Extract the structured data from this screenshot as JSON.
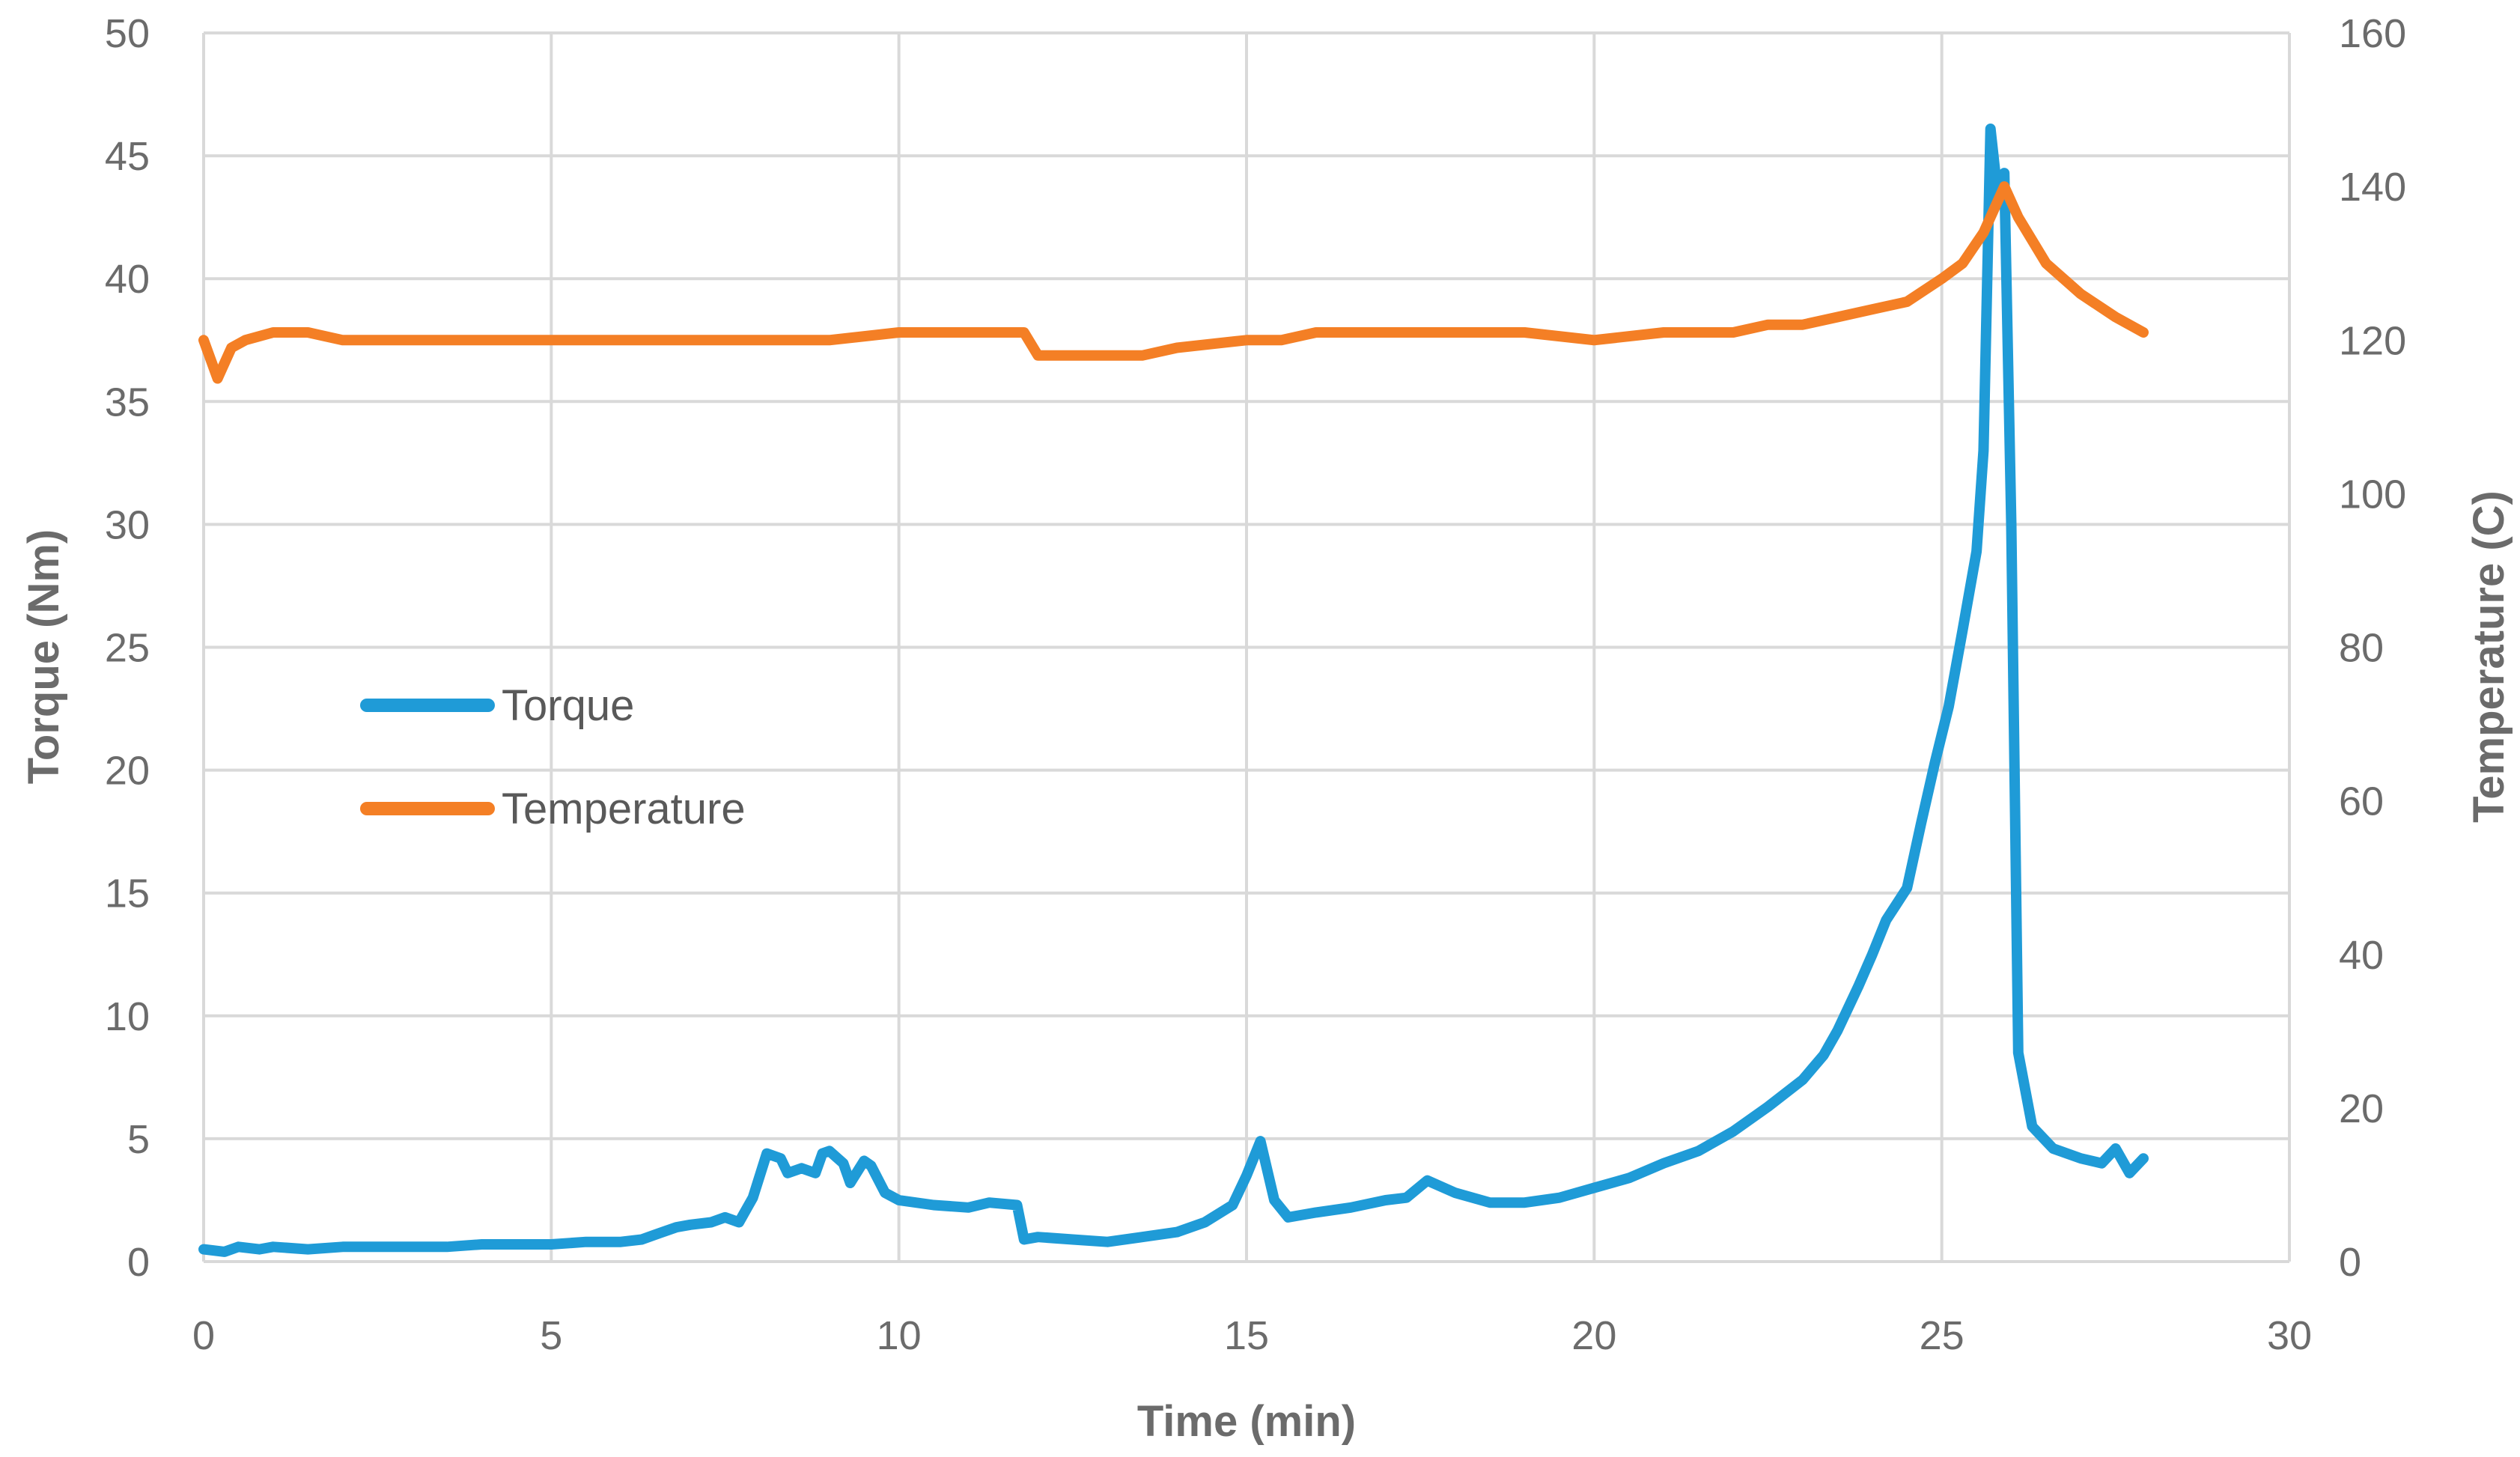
{
  "chart_data": {
    "type": "line",
    "xlabel": "Time (min)",
    "ylabel": "Torque (Nm)",
    "y2label": "Temperature (C)",
    "xlim": [
      0,
      30
    ],
    "ylim": [
      0,
      50
    ],
    "y2lim": [
      0,
      160
    ],
    "xticks": [
      0,
      5,
      10,
      15,
      20,
      25,
      30
    ],
    "yticks": [
      0,
      5,
      10,
      15,
      20,
      25,
      30,
      35,
      40,
      45,
      50
    ],
    "y2ticks": [
      0,
      20,
      40,
      60,
      80,
      100,
      120,
      140,
      160
    ],
    "grid": true,
    "legend_position": "center-left",
    "series": [
      {
        "name": "Torque",
        "axis": "left",
        "color": "#1f9bd7",
        "points": [
          [
            0,
            0.5
          ],
          [
            0.3,
            0.4
          ],
          [
            0.5,
            0.6
          ],
          [
            0.8,
            0.5
          ],
          [
            1,
            0.6
          ],
          [
            1.5,
            0.5
          ],
          [
            2,
            0.6
          ],
          [
            2.5,
            0.6
          ],
          [
            3,
            0.6
          ],
          [
            3.5,
            0.6
          ],
          [
            4,
            0.7
          ],
          [
            4.5,
            0.7
          ],
          [
            5,
            0.7
          ],
          [
            5.5,
            0.8
          ],
          [
            6,
            0.8
          ],
          [
            6.3,
            0.9
          ],
          [
            6.5,
            1.1
          ],
          [
            6.8,
            1.4
          ],
          [
            7,
            1.5
          ],
          [
            7.3,
            1.6
          ],
          [
            7.5,
            1.8
          ],
          [
            7.7,
            1.6
          ],
          [
            7.9,
            2.6
          ],
          [
            8.1,
            4.4
          ],
          [
            8.3,
            4.2
          ],
          [
            8.4,
            3.6
          ],
          [
            8.6,
            3.8
          ],
          [
            8.8,
            3.6
          ],
          [
            8.9,
            4.4
          ],
          [
            9.0,
            4.5
          ],
          [
            9.2,
            4.0
          ],
          [
            9.3,
            3.2
          ],
          [
            9.5,
            4.1
          ],
          [
            9.6,
            3.9
          ],
          [
            9.8,
            2.8
          ],
          [
            10,
            2.5
          ],
          [
            10.5,
            2.3
          ],
          [
            11,
            2.2
          ],
          [
            11.3,
            2.4
          ],
          [
            11.7,
            2.3
          ],
          [
            11.8,
            0.9
          ],
          [
            12,
            1.0
          ],
          [
            12.5,
            0.9
          ],
          [
            13,
            0.8
          ],
          [
            13.5,
            1.0
          ],
          [
            14,
            1.2
          ],
          [
            14.4,
            1.6
          ],
          [
            14.8,
            2.3
          ],
          [
            15.0,
            3.5
          ],
          [
            15.2,
            4.9
          ],
          [
            15.4,
            2.5
          ],
          [
            15.6,
            1.8
          ],
          [
            16,
            2.0
          ],
          [
            16.5,
            2.2
          ],
          [
            17,
            2.5
          ],
          [
            17.3,
            2.6
          ],
          [
            17.6,
            3.3
          ],
          [
            18,
            2.8
          ],
          [
            18.5,
            2.4
          ],
          [
            19,
            2.4
          ],
          [
            19.5,
            2.6
          ],
          [
            20,
            3.0
          ],
          [
            20.5,
            3.4
          ],
          [
            21,
            4.0
          ],
          [
            21.5,
            4.5
          ],
          [
            22,
            5.3
          ],
          [
            22.5,
            6.3
          ],
          [
            23,
            7.4
          ],
          [
            23.3,
            8.4
          ],
          [
            23.5,
            9.4
          ],
          [
            23.8,
            11.2
          ],
          [
            24.0,
            12.5
          ],
          [
            24.2,
            13.9
          ],
          [
            24.5,
            15.2
          ],
          [
            24.7,
            17.8
          ],
          [
            24.9,
            20.3
          ],
          [
            25.1,
            22.6
          ],
          [
            25.3,
            25.7
          ],
          [
            25.5,
            28.9
          ],
          [
            25.6,
            33.0
          ],
          [
            25.7,
            46.1
          ],
          [
            25.8,
            43.5
          ],
          [
            25.9,
            44.3
          ],
          [
            26.0,
            30.0
          ],
          [
            26.1,
            8.5
          ],
          [
            26.3,
            5.5
          ],
          [
            26.6,
            4.6
          ],
          [
            27,
            4.2
          ],
          [
            27.3,
            4.0
          ],
          [
            27.5,
            4.6
          ],
          [
            27.7,
            3.6
          ],
          [
            27.9,
            4.2
          ]
        ]
      },
      {
        "name": "Temperature",
        "axis": "right",
        "color": "#f47f25",
        "points": [
          [
            0,
            120
          ],
          [
            0.2,
            115
          ],
          [
            0.4,
            119
          ],
          [
            0.6,
            120
          ],
          [
            1,
            121
          ],
          [
            1.5,
            121
          ],
          [
            2,
            120
          ],
          [
            3,
            120
          ],
          [
            4,
            120
          ],
          [
            5,
            120
          ],
          [
            6,
            120
          ],
          [
            7,
            120
          ],
          [
            8,
            120
          ],
          [
            9,
            120
          ],
          [
            10,
            121
          ],
          [
            11,
            121
          ],
          [
            11.8,
            121
          ],
          [
            12,
            118
          ],
          [
            12.5,
            118
          ],
          [
            13,
            118
          ],
          [
            13.5,
            118
          ],
          [
            14,
            119
          ],
          [
            15,
            120
          ],
          [
            15.5,
            120
          ],
          [
            16,
            121
          ],
          [
            17,
            121
          ],
          [
            18,
            121
          ],
          [
            19,
            121
          ],
          [
            20,
            120
          ],
          [
            21,
            121
          ],
          [
            22,
            121
          ],
          [
            22.5,
            122
          ],
          [
            23,
            122
          ],
          [
            23.5,
            123
          ],
          [
            24,
            124
          ],
          [
            24.5,
            125
          ],
          [
            25,
            128
          ],
          [
            25.3,
            130
          ],
          [
            25.6,
            134
          ],
          [
            25.9,
            140
          ],
          [
            26.1,
            136
          ],
          [
            26.5,
            130
          ],
          [
            27,
            126
          ],
          [
            27.5,
            123
          ],
          [
            27.9,
            121
          ]
        ]
      }
    ]
  }
}
